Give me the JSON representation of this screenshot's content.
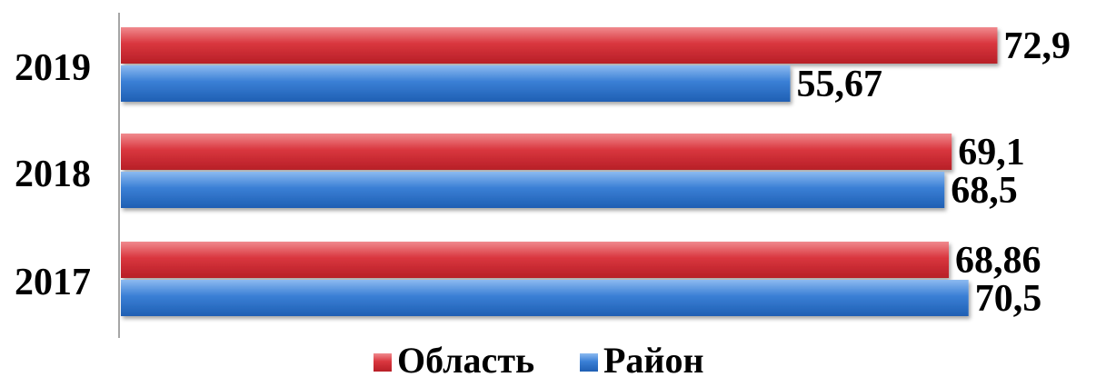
{
  "chart_data": {
    "type": "bar",
    "orientation": "horizontal",
    "categories": [
      "2019",
      "2018",
      "2017"
    ],
    "series": [
      {
        "name": "Область",
        "color": "#d9363e",
        "values": [
          72.9,
          69.1,
          68.86
        ],
        "labels": [
          "72,9",
          "69,1",
          "68,86"
        ]
      },
      {
        "name": "Район",
        "color": "#3a7fd5",
        "values": [
          55.67,
          68.5,
          70.5
        ],
        "labels": [
          "55,67",
          "68,5",
          "70,5"
        ]
      }
    ],
    "xlim": [
      0,
      80
    ],
    "grid": false,
    "legend_position": "bottom"
  }
}
